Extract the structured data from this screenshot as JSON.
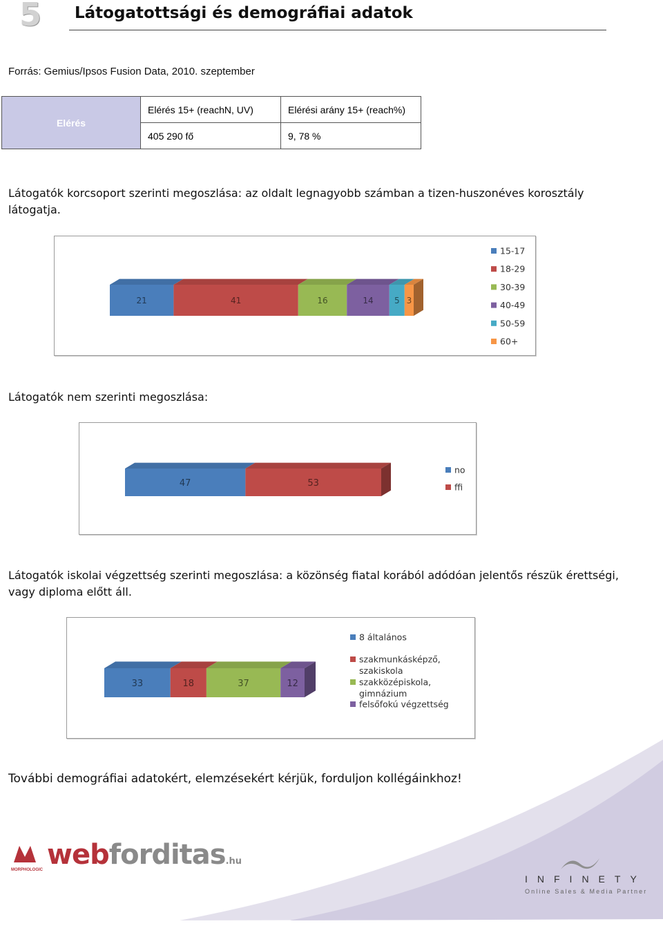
{
  "page": {
    "number": "5",
    "title": "Látogatottsági és demográfiai adatok",
    "source": "Forrás: Gemius/Ipsos Fusion Data, 2010. szeptember"
  },
  "reach_table": {
    "row_label": "Elérés",
    "col1_header": "Elérés 15+ (reachN, UV)",
    "col2_header": "Elérési arány 15+ (reach%)",
    "col1_value": "405 290 fő",
    "col2_value": "9, 78 %"
  },
  "sections": {
    "age_text": "Látogatók korcsoport szerinti megoszlása: az oldalt legnagyobb számban a tizen-huszonéves korosztály látogatja.",
    "gender_text": "Látogatók nem szerinti megoszlása:",
    "education_text": "Látogatók iskolai végzettség szerinti megoszlása: a közönség fiatal korából adódóan jelentős részük érettségi, vagy diploma előtt áll.",
    "closing_text": "További demográfiai adatokért, elemzésekért kérjük,  forduljon kollégáinkhoz!"
  },
  "chart_data": [
    {
      "type": "bar",
      "orientation": "horizontal-stacked",
      "title": "",
      "legend_position": "right",
      "series": [
        {
          "name": "15-17",
          "values": [
            21
          ],
          "color": "#4a7ebb"
        },
        {
          "name": "18-29",
          "values": [
            41
          ],
          "color": "#be4b48"
        },
        {
          "name": "30-39",
          "values": [
            16
          ],
          "color": "#98b954"
        },
        {
          "name": "40-49",
          "values": [
            14
          ],
          "color": "#7d60a0"
        },
        {
          "name": "50-59",
          "values": [
            5
          ],
          "color": "#46aac5"
        },
        {
          "name": "60+",
          "values": [
            3
          ],
          "color": "#f79646"
        }
      ]
    },
    {
      "type": "bar",
      "orientation": "horizontal-stacked",
      "title": "",
      "legend_position": "right",
      "series": [
        {
          "name": "no",
          "values": [
            47
          ],
          "color": "#4a7ebb"
        },
        {
          "name": "ffi",
          "values": [
            53
          ],
          "color": "#be4b48"
        }
      ]
    },
    {
      "type": "bar",
      "orientation": "horizontal-stacked",
      "title": "",
      "legend_position": "right",
      "series": [
        {
          "name": "8 általános",
          "values": [
            33
          ],
          "color": "#4a7ebb"
        },
        {
          "name": "szakmunkásképző, szakiskola",
          "values": [
            18
          ],
          "color": "#be4b48"
        },
        {
          "name": "szakközépiskola, gimnázium",
          "values": [
            37
          ],
          "color": "#98b954"
        },
        {
          "name": "felsőfokú végzettség",
          "values": [
            12
          ],
          "color": "#7d60a0"
        }
      ]
    }
  ],
  "logos": {
    "webforditas_part1": "web",
    "webforditas_part2": "forditas",
    "webforditas_tld": ".hu",
    "morpholog": "MORPHOLOGIC",
    "infinety": "INFINETY",
    "infinety_tagline": "Online Sales & Media Partner"
  }
}
